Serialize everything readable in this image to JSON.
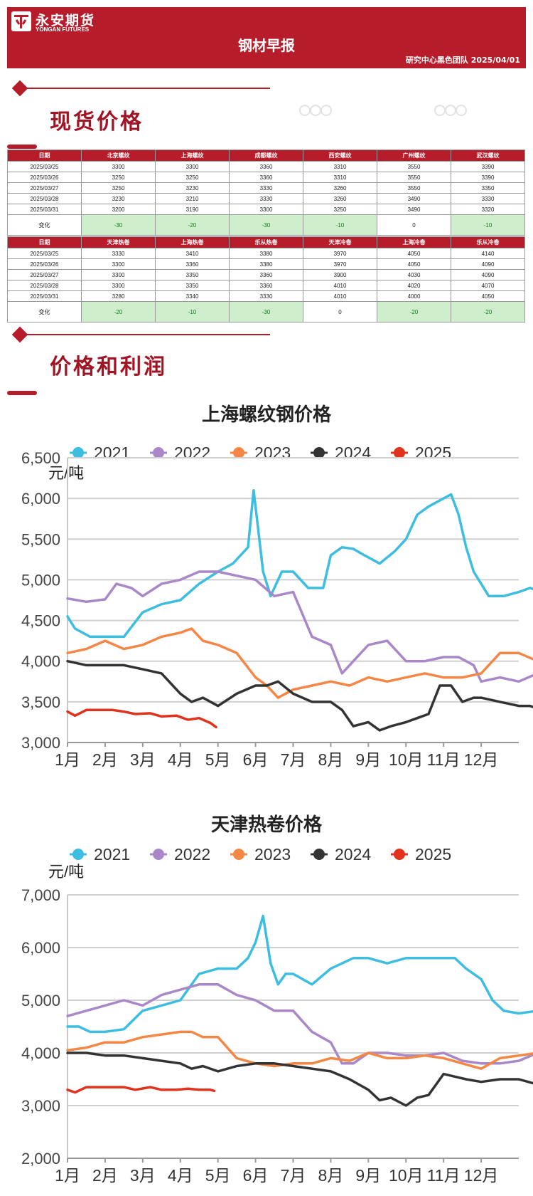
{
  "header": {
    "company_cn": "永安期货",
    "company_en": "YONGAN FUTURES",
    "title": "钢材早报",
    "subtitle": "研究中心黑色团队  2025/04/01"
  },
  "watermark": "",
  "sections": {
    "spot_title": "现货价格",
    "profit_title": "价格和利润"
  },
  "table1": {
    "headers": [
      "日期",
      "北京螺纹",
      "上海螺纹",
      "成都螺纹",
      "西安螺纹",
      "广州螺纹",
      "武汉螺纹"
    ],
    "rows": [
      [
        "2025/03/25",
        "3300",
        "3300",
        "3360",
        "3310",
        "3550",
        "3390"
      ],
      [
        "2025/03/26",
        "3250",
        "3250",
        "3360",
        "3310",
        "3550",
        "3390"
      ],
      [
        "2025/03/27",
        "3250",
        "3230",
        "3330",
        "3260",
        "3550",
        "3350"
      ],
      [
        "2025/03/28",
        "3230",
        "3210",
        "3330",
        "3260",
        "3490",
        "3330"
      ],
      [
        "2025/03/31",
        "3200",
        "3190",
        "3300",
        "3250",
        "3490",
        "3320"
      ]
    ],
    "change": [
      "变化",
      "-30",
      "-20",
      "-30",
      "-10",
      "0",
      "-10"
    ]
  },
  "table2": {
    "headers": [
      "日期",
      "天津热卷",
      "上海热卷",
      "乐从热卷",
      "天津冷卷",
      "上海冷卷",
      "乐从冷卷"
    ],
    "rows": [
      [
        "2025/03/25",
        "3330",
        "3410",
        "3380",
        "3970",
        "4050",
        "4140"
      ],
      [
        "2025/03/26",
        "3300",
        "3360",
        "3380",
        "3970",
        "4050",
        "4090"
      ],
      [
        "2025/03/27",
        "3300",
        "3350",
        "3360",
        "3900",
        "4030",
        "4090"
      ],
      [
        "2025/03/28",
        "3300",
        "3350",
        "3360",
        "4010",
        "4020",
        "4070"
      ],
      [
        "2025/03/31",
        "3280",
        "3340",
        "3330",
        "4010",
        "4000",
        "4050"
      ]
    ],
    "change": [
      "变化",
      "-20",
      "-10",
      "-30",
      "0",
      "-20",
      "-20"
    ]
  },
  "chart_data": [
    {
      "type": "line",
      "title": "上海螺纹钢价格",
      "ylabel": "元/吨",
      "categories": [
        "1月",
        "2月",
        "3月",
        "4月",
        "5月",
        "6月",
        "7月",
        "8月",
        "9月",
        "10月",
        "11月",
        "12月"
      ],
      "ylim": [
        3000,
        6500
      ],
      "yticks": [
        "3,000",
        "3,500",
        "4,000",
        "4,500",
        "5,000",
        "5,500",
        "6,000",
        "6,500"
      ],
      "legend_position": "top",
      "series": [
        {
          "name": "2021",
          "color": "#3dbde0",
          "x": [
            0,
            0.2,
            0.6,
            1.0,
            1.5,
            2.0,
            2.5,
            3.0,
            3.5,
            4.0,
            4.4,
            4.8,
            4.95,
            5.1,
            5.2,
            5.4,
            5.7,
            6.0,
            6.4,
            6.8,
            7.0,
            7.3,
            7.6,
            7.9,
            8.3,
            8.7,
            9.0,
            9.3,
            9.6,
            10.0,
            10.2,
            10.4,
            10.6,
            10.8,
            11.0,
            11.2,
            11.6,
            12.0,
            12.3,
            12.6,
            12.8
          ],
          "values": [
            4550,
            4400,
            4300,
            4300,
            4300,
            4600,
            4700,
            4750,
            4950,
            5100,
            5200,
            5400,
            6100,
            5500,
            5100,
            4800,
            5100,
            5100,
            4900,
            4900,
            5300,
            5400,
            5380,
            5300,
            5200,
            5350,
            5500,
            5800,
            5900,
            6000,
            6050,
            5800,
            5400,
            5100,
            4950,
            4800,
            4800,
            4850,
            4900,
            4850,
            4750
          ]
        },
        {
          "name": "2022",
          "color": "#a987c8",
          "x": [
            0,
            0.5,
            1.0,
            1.3,
            1.7,
            2.0,
            2.5,
            3.0,
            3.5,
            4.0,
            4.5,
            5.0,
            5.5,
            6.0,
            6.5,
            7.0,
            7.3,
            7.6,
            8.0,
            8.5,
            9.0,
            9.5,
            10.0,
            10.4,
            10.8,
            11.0,
            11.5,
            12.0,
            12.5,
            12.8
          ],
          "values": [
            4770,
            4730,
            4760,
            4950,
            4900,
            4800,
            4950,
            5000,
            5100,
            5100,
            5050,
            5000,
            4800,
            4850,
            4300,
            4200,
            3850,
            4000,
            4200,
            4250,
            4000,
            4000,
            4050,
            4050,
            3950,
            3750,
            3800,
            3750,
            3850,
            4100
          ]
        },
        {
          "name": "2023",
          "color": "#f58746",
          "x": [
            0,
            0.5,
            1.0,
            1.5,
            2.0,
            2.5,
            3.0,
            3.3,
            3.6,
            4.0,
            4.5,
            5.0,
            5.3,
            5.6,
            6.0,
            6.5,
            7.0,
            7.5,
            8.0,
            8.5,
            9.0,
            9.5,
            10.0,
            10.5,
            11.0,
            11.5,
            12.0,
            12.5,
            12.8
          ],
          "values": [
            4100,
            4150,
            4250,
            4150,
            4200,
            4300,
            4350,
            4400,
            4250,
            4200,
            4100,
            3800,
            3700,
            3550,
            3650,
            3700,
            3750,
            3700,
            3800,
            3750,
            3800,
            3850,
            3800,
            3800,
            3850,
            4100,
            4100,
            4000,
            4000
          ]
        },
        {
          "name": "2024",
          "color": "#333333",
          "x": [
            0,
            0.5,
            1.0,
            1.5,
            2.0,
            2.5,
            3.0,
            3.3,
            3.6,
            4.0,
            4.5,
            5.0,
            5.3,
            5.6,
            6.0,
            6.5,
            7.0,
            7.3,
            7.6,
            8.0,
            8.3,
            8.6,
            9.0,
            9.3,
            9.6,
            9.9,
            10.2,
            10.5,
            10.8,
            11.0,
            11.5,
            12.0,
            12.3,
            12.6,
            12.8
          ],
          "values": [
            4000,
            3950,
            3950,
            3950,
            3900,
            3850,
            3600,
            3500,
            3550,
            3450,
            3600,
            3700,
            3700,
            3750,
            3600,
            3500,
            3500,
            3400,
            3200,
            3250,
            3150,
            3200,
            3250,
            3300,
            3350,
            3700,
            3700,
            3500,
            3550,
            3550,
            3500,
            3450,
            3450,
            3400,
            3400
          ]
        },
        {
          "name": "2025",
          "color": "#e0321c",
          "x": [
            0,
            0.2,
            0.5,
            0.8,
            1.2,
            1.5,
            1.8,
            2.2,
            2.5,
            2.9,
            3.2,
            3.5,
            3.8,
            3.95
          ],
          "values": [
            3380,
            3330,
            3400,
            3400,
            3400,
            3380,
            3350,
            3360,
            3320,
            3330,
            3280,
            3300,
            3240,
            3190
          ]
        }
      ]
    },
    {
      "type": "line",
      "title": "天津热卷价格",
      "ylabel": "元/吨",
      "categories": [
        "1月",
        "2月",
        "3月",
        "4月",
        "5月",
        "6月",
        "7月",
        "8月",
        "9月",
        "10月",
        "11月",
        "12月"
      ],
      "ylim": [
        2000,
        7000
      ],
      "yticks": [
        "2,000",
        "3,000",
        "4,000",
        "5,000",
        "6,000",
        "7,000"
      ],
      "legend_position": "top",
      "series": [
        {
          "name": "2021",
          "color": "#3dbde0",
          "x": [
            0,
            0.3,
            0.6,
            1.0,
            1.5,
            2.0,
            2.5,
            3.0,
            3.5,
            4.0,
            4.5,
            4.8,
            5.0,
            5.2,
            5.4,
            5.6,
            5.8,
            6.0,
            6.5,
            7.0,
            7.3,
            7.6,
            8.0,
            8.5,
            9.0,
            9.5,
            10.0,
            10.3,
            10.6,
            11.0,
            11.3,
            11.6,
            12.0,
            12.5,
            12.8
          ],
          "values": [
            4500,
            4500,
            4400,
            4400,
            4450,
            4800,
            4900,
            5000,
            5500,
            5600,
            5600,
            5800,
            6100,
            6600,
            5700,
            5300,
            5500,
            5500,
            5300,
            5600,
            5700,
            5800,
            5800,
            5700,
            5800,
            5800,
            5800,
            5800,
            5600,
            5400,
            5000,
            4800,
            4750,
            4800,
            4700
          ]
        },
        {
          "name": "2022",
          "color": "#a987c8",
          "x": [
            0,
            0.5,
            1.0,
            1.5,
            2.0,
            2.5,
            3.0,
            3.5,
            4.0,
            4.5,
            5.0,
            5.5,
            6.0,
            6.5,
            7.0,
            7.3,
            7.6,
            8.0,
            8.5,
            9.0,
            9.5,
            10.0,
            10.5,
            11.0,
            11.5,
            12.0,
            12.5,
            12.8
          ],
          "values": [
            4700,
            4800,
            4900,
            5000,
            4900,
            5100,
            5200,
            5300,
            5300,
            5100,
            5000,
            4800,
            4800,
            4400,
            4200,
            3800,
            3800,
            4000,
            4000,
            3950,
            3950,
            4000,
            3850,
            3800,
            3800,
            3850,
            4000,
            4000
          ]
        },
        {
          "name": "2023",
          "color": "#f58746",
          "x": [
            0,
            0.5,
            1.0,
            1.5,
            2.0,
            2.5,
            3.0,
            3.3,
            3.6,
            4.0,
            4.5,
            5.0,
            5.5,
            6.0,
            6.5,
            7.0,
            7.5,
            8.0,
            8.5,
            9.0,
            9.5,
            10.0,
            10.5,
            11.0,
            11.5,
            12.0,
            12.5,
            12.8
          ],
          "values": [
            4050,
            4100,
            4200,
            4200,
            4300,
            4350,
            4400,
            4400,
            4300,
            4300,
            3900,
            3800,
            3750,
            3800,
            3800,
            3900,
            3850,
            4000,
            3900,
            3900,
            3950,
            3900,
            3800,
            3700,
            3900,
            3950,
            4000,
            4000
          ]
        },
        {
          "name": "2024",
          "color": "#333333",
          "x": [
            0,
            0.5,
            1.0,
            1.5,
            2.0,
            2.5,
            3.0,
            3.3,
            3.6,
            4.0,
            4.5,
            5.0,
            5.5,
            6.0,
            6.5,
            7.0,
            7.5,
            8.0,
            8.3,
            8.6,
            9.0,
            9.3,
            9.6,
            10.0,
            10.3,
            10.6,
            11.0,
            11.5,
            12.0,
            12.5,
            12.8
          ],
          "values": [
            4000,
            4000,
            3950,
            3950,
            3900,
            3850,
            3800,
            3700,
            3750,
            3650,
            3750,
            3800,
            3800,
            3750,
            3700,
            3650,
            3500,
            3300,
            3100,
            3150,
            3000,
            3150,
            3200,
            3600,
            3550,
            3500,
            3450,
            3500,
            3500,
            3400,
            3400
          ]
        },
        {
          "name": "2025",
          "color": "#e0321c",
          "x": [
            0,
            0.2,
            0.5,
            0.8,
            1.2,
            1.5,
            1.8,
            2.2,
            2.5,
            2.9,
            3.2,
            3.5,
            3.8,
            3.9
          ],
          "values": [
            3300,
            3250,
            3350,
            3350,
            3350,
            3350,
            3300,
            3350,
            3300,
            3300,
            3320,
            3300,
            3300,
            3280
          ]
        }
      ]
    }
  ]
}
